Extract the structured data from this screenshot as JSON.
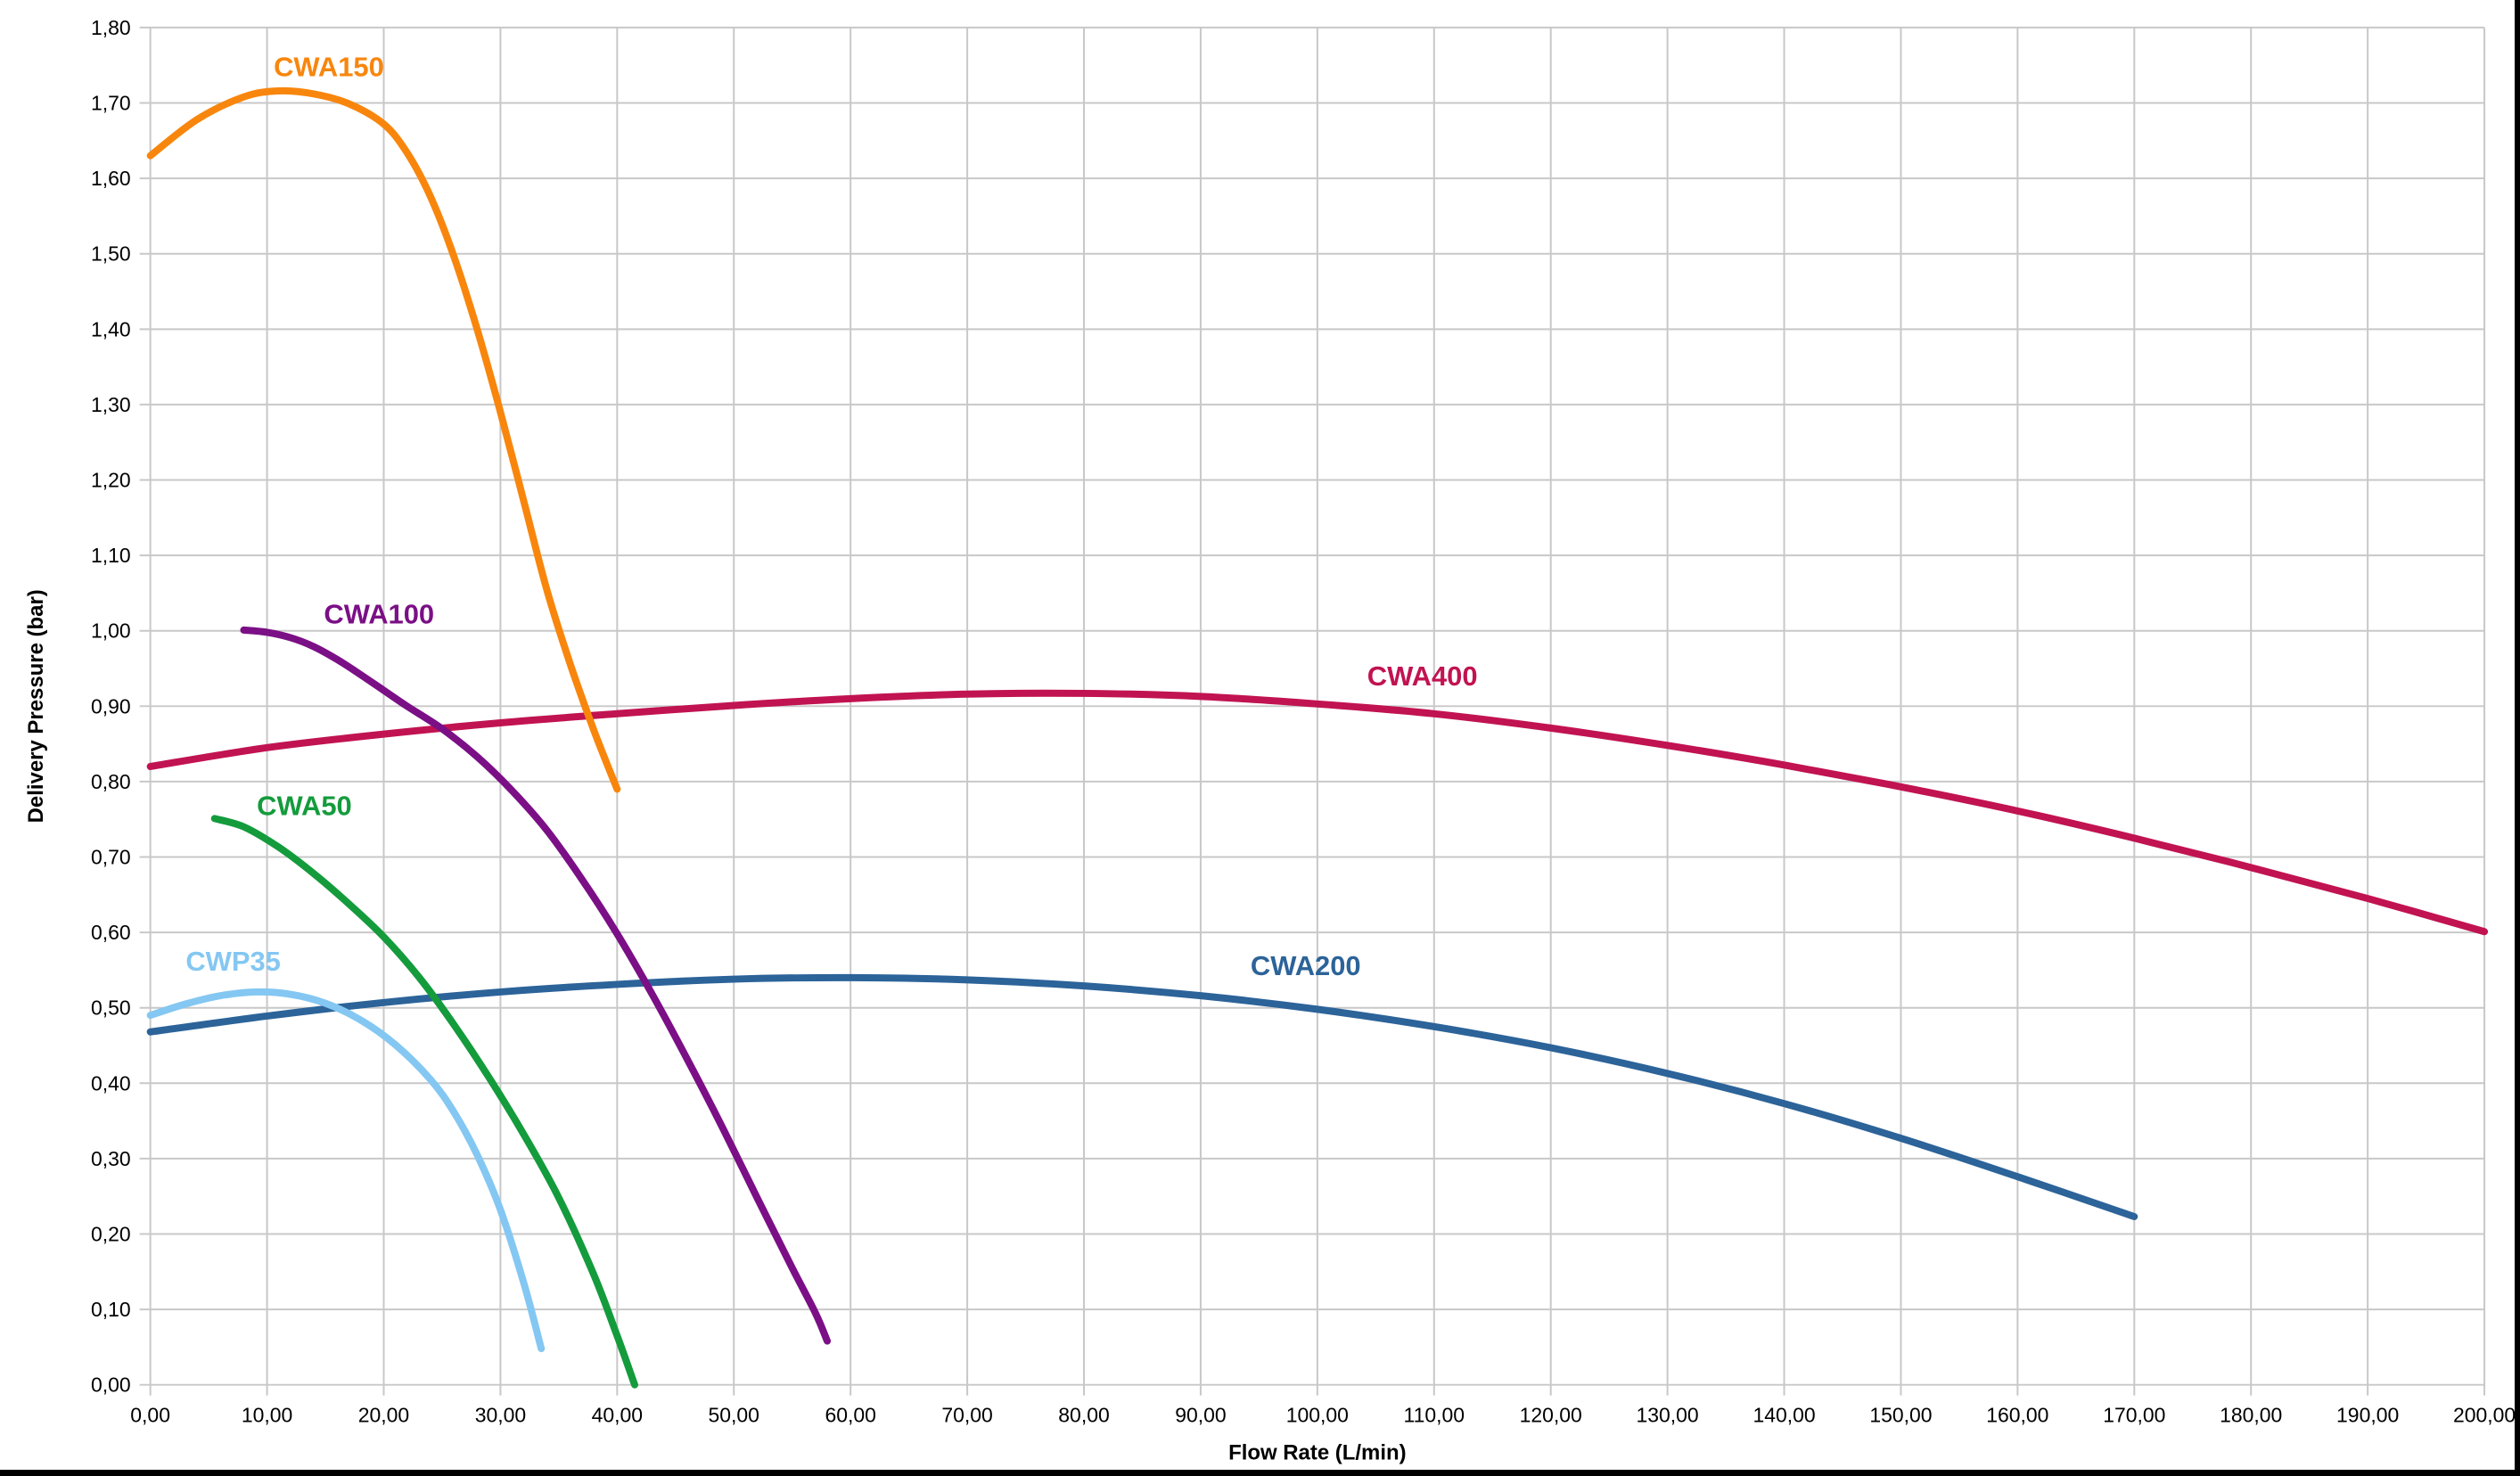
{
  "chart_data": {
    "type": "line",
    "title": "",
    "xlabel": "Flow Rate (L/min)",
    "ylabel": "Delivery Pressure (bar)",
    "xlim": [
      0,
      200
    ],
    "ylim": [
      0,
      1.8
    ],
    "grid": true,
    "legend_position": "inline-labels",
    "colors": {
      "background": "#FFFFFF",
      "grid": "#C8C8C8",
      "axis_text": "#000000"
    },
    "x_ticks": [
      0,
      10,
      20,
      30,
      40,
      50,
      60,
      70,
      80,
      90,
      100,
      110,
      120,
      130,
      140,
      150,
      160,
      170,
      180,
      190,
      200
    ],
    "x_tick_labels": [
      "0,00",
      "10,00",
      "20,00",
      "30,00",
      "40,00",
      "50,00",
      "60,00",
      "70,00",
      "80,00",
      "90,00",
      "100,00",
      "110,00",
      "120,00",
      "130,00",
      "140,00",
      "150,00",
      "160,00",
      "170,00",
      "180,00",
      "190,00",
      "200,00"
    ],
    "y_ticks": [
      0,
      0.1,
      0.2,
      0.3,
      0.4,
      0.5,
      0.6,
      0.7,
      0.8,
      0.9,
      1.0,
      1.1,
      1.2,
      1.3,
      1.4,
      1.5,
      1.6,
      1.7,
      1.8
    ],
    "y_tick_labels": [
      "0,00",
      "0,10",
      "0,20",
      "0,30",
      "0,40",
      "0,50",
      "0,60",
      "0,70",
      "0,80",
      "0,90",
      "1,00",
      "1,10",
      "1,20",
      "1,30",
      "1,40",
      "1,50",
      "1,60",
      "1,70",
      "1,80"
    ],
    "series": [
      {
        "name": "CWA400",
        "color": "#C11351",
        "label_x": 109,
        "label_y": 0.94,
        "points": [
          [
            0,
            0.82
          ],
          [
            10,
            0.845
          ],
          [
            20,
            0.863
          ],
          [
            30,
            0.878
          ],
          [
            40,
            0.89
          ],
          [
            50,
            0.901
          ],
          [
            60,
            0.91
          ],
          [
            70,
            0.916
          ],
          [
            80,
            0.917
          ],
          [
            90,
            0.913
          ],
          [
            100,
            0.903
          ],
          [
            110,
            0.89
          ],
          [
            120,
            0.871
          ],
          [
            130,
            0.848
          ],
          [
            140,
            0.822
          ],
          [
            150,
            0.793
          ],
          [
            160,
            0.761
          ],
          [
            170,
            0.725
          ],
          [
            180,
            0.686
          ],
          [
            190,
            0.645
          ],
          [
            200,
            0.601
          ]
        ]
      },
      {
        "name": "CWA200",
        "color": "#2C6399",
        "label_x": 99,
        "label_y": 0.556,
        "points": [
          [
            0,
            0.468
          ],
          [
            10,
            0.489
          ],
          [
            20,
            0.507
          ],
          [
            30,
            0.521
          ],
          [
            40,
            0.531
          ],
          [
            50,
            0.538
          ],
          [
            60,
            0.54
          ],
          [
            70,
            0.537
          ],
          [
            80,
            0.529
          ],
          [
            90,
            0.516
          ],
          [
            100,
            0.498
          ],
          [
            110,
            0.475
          ],
          [
            120,
            0.447
          ],
          [
            130,
            0.413
          ],
          [
            140,
            0.373
          ],
          [
            150,
            0.327
          ],
          [
            160,
            0.276
          ],
          [
            170,
            0.223
          ]
        ]
      },
      {
        "name": "CWP35",
        "color": "#84C7F2",
        "label_x": 7.1,
        "label_y": 0.562,
        "points": [
          [
            0,
            0.49
          ],
          [
            3,
            0.505
          ],
          [
            6,
            0.516
          ],
          [
            9,
            0.521
          ],
          [
            12,
            0.518
          ],
          [
            15,
            0.506
          ],
          [
            18,
            0.484
          ],
          [
            21,
            0.451
          ],
          [
            24,
            0.405
          ],
          [
            26,
            0.362
          ],
          [
            28,
            0.305
          ],
          [
            30,
            0.232
          ],
          [
            32,
            0.135
          ],
          [
            33.5,
            0.048
          ]
        ]
      },
      {
        "name": "CWA50",
        "color": "#149B3C",
        "label_x": 13.2,
        "label_y": 0.768,
        "points": [
          [
            5.5,
            0.751
          ],
          [
            8,
            0.74
          ],
          [
            11,
            0.713
          ],
          [
            14,
            0.678
          ],
          [
            17,
            0.638
          ],
          [
            20,
            0.594
          ],
          [
            23,
            0.541
          ],
          [
            26,
            0.478
          ],
          [
            29,
            0.408
          ],
          [
            32,
            0.332
          ],
          [
            35,
            0.248
          ],
          [
            38,
            0.146
          ],
          [
            40,
            0.065
          ],
          [
            41.5,
            0.0
          ]
        ]
      },
      {
        "name": "CWA100",
        "color": "#7B0F86",
        "label_x": 19.6,
        "label_y": 1.022,
        "points": [
          [
            8,
            1.001
          ],
          [
            10,
            0.998
          ],
          [
            12,
            0.991
          ],
          [
            14,
            0.979
          ],
          [
            16,
            0.962
          ],
          [
            18,
            0.942
          ],
          [
            20,
            0.921
          ],
          [
            22,
            0.9
          ],
          [
            25,
            0.87
          ],
          [
            28,
            0.833
          ],
          [
            31,
            0.788
          ],
          [
            34,
            0.735
          ],
          [
            37,
            0.67
          ],
          [
            40,
            0.598
          ],
          [
            43,
            0.518
          ],
          [
            46,
            0.432
          ],
          [
            49,
            0.342
          ],
          [
            52,
            0.248
          ],
          [
            55,
            0.155
          ],
          [
            57,
            0.095
          ],
          [
            58,
            0.058
          ]
        ]
      },
      {
        "name": "CWA150",
        "color": "#F8860D",
        "label_x": 15.3,
        "label_y": 1.748,
        "points": [
          [
            0,
            1.63
          ],
          [
            4,
            1.678
          ],
          [
            8,
            1.708
          ],
          [
            11,
            1.716
          ],
          [
            14,
            1.712
          ],
          [
            17,
            1.699
          ],
          [
            20,
            1.672
          ],
          [
            22,
            1.634
          ],
          [
            24,
            1.576
          ],
          [
            26,
            1.497
          ],
          [
            28,
            1.4
          ],
          [
            30,
            1.29
          ],
          [
            32,
            1.172
          ],
          [
            34,
            1.053
          ],
          [
            36,
            0.955
          ],
          [
            38,
            0.868
          ],
          [
            40,
            0.79
          ]
        ]
      }
    ]
  }
}
